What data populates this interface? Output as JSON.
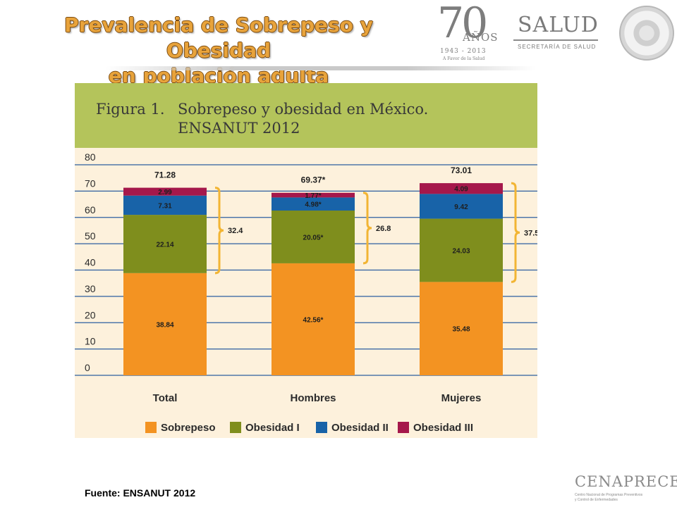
{
  "slide": {
    "title_line1": "Prevalencia de Sobrepeso y Obesidad",
    "title_line2": "en población adulta",
    "source": "Fuente: ENSANUT 2012"
  },
  "logos": {
    "anniversary_number": "70",
    "anniversary_word": "AÑOS",
    "anniversary_years": "1943 - 2013",
    "anniversary_tagline": "A Favor de la Salud",
    "salud": "SALUD",
    "salud_sub": "SECRETARÍA DE SALUD",
    "cenaprece": "CENAPRECE",
    "cenaprece_sub1": "Centro Nacional de Programas Preventivos",
    "cenaprece_sub2": "y Control de Enfermedades"
  },
  "chart_data": {
    "type": "bar",
    "stacked": true,
    "figure_label": "Figura 1.",
    "title": "Sobrepeso y obesidad en México.",
    "subtitle": "ENSANUT 2012",
    "categories": [
      "Total",
      "Hombres",
      "Mujeres"
    ],
    "ylim": [
      0,
      80
    ],
    "yticks": [
      "0",
      "10",
      "20",
      "30",
      "40",
      "50",
      "60",
      "70",
      "80"
    ],
    "grid": true,
    "legend_position": "bottom",
    "series": [
      {
        "name": "Sobrepeso",
        "color": "#f39322",
        "values": [
          38.84,
          42.56,
          35.48
        ],
        "labels": [
          "38.84",
          "42.56*",
          "35.48"
        ]
      },
      {
        "name": "Obesidad I",
        "color": "#7f8e1d",
        "values": [
          22.14,
          20.05,
          24.03
        ],
        "labels": [
          "22.14",
          "20.05*",
          "24.03"
        ]
      },
      {
        "name": "Obesidad II",
        "color": "#1863a8",
        "values": [
          7.31,
          4.98,
          9.42
        ],
        "labels": [
          "7.31",
          "4.98*",
          "9.42"
        ]
      },
      {
        "name": "Obesidad III",
        "color": "#a5184b",
        "values": [
          2.99,
          1.77,
          4.09
        ],
        "labels": [
          "2.99",
          "1.77*",
          "4.09"
        ]
      }
    ],
    "totals": [
      71.28,
      69.37,
      73.01
    ],
    "total_labels": [
      "71.28",
      "69.37*",
      "73.01"
    ],
    "obesity_totals": [
      32.4,
      26.8,
      37.5
    ],
    "obesity_labels": [
      "32.4",
      "26.8",
      "37.5"
    ]
  }
}
